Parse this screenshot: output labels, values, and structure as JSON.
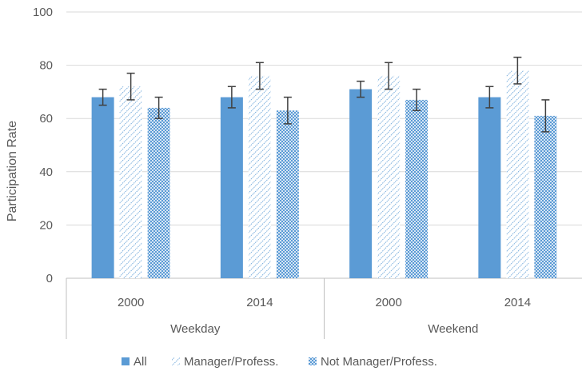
{
  "chart_data": {
    "type": "bar",
    "ylabel": "Participation Rate",
    "ylim": [
      0,
      100
    ],
    "yticks": [
      0,
      20,
      40,
      60,
      80,
      100
    ],
    "grid": true,
    "legend_position": "bottom",
    "groups": [
      {
        "label": "Weekday",
        "categories": [
          "2000",
          "2014"
        ]
      },
      {
        "label": "Weekend",
        "categories": [
          "2000",
          "2014"
        ]
      }
    ],
    "series": [
      {
        "name": "All",
        "style": "solid",
        "color": "#5b9bd5",
        "values": [
          68,
          68,
          71,
          68
        ],
        "error": [
          3,
          4,
          3,
          4
        ]
      },
      {
        "name": "Manager/Profess.",
        "style": "diagonal-hatch",
        "color": "#5b9bd5",
        "values": [
          72,
          76,
          76,
          78
        ],
        "error": [
          5,
          5,
          5,
          5
        ]
      },
      {
        "name": "Not Manager/Profess.",
        "style": "dotted-hatch",
        "color": "#5b9bd5",
        "values": [
          64,
          63,
          67,
          61
        ],
        "error": [
          4,
          5,
          4,
          6
        ]
      }
    ]
  }
}
